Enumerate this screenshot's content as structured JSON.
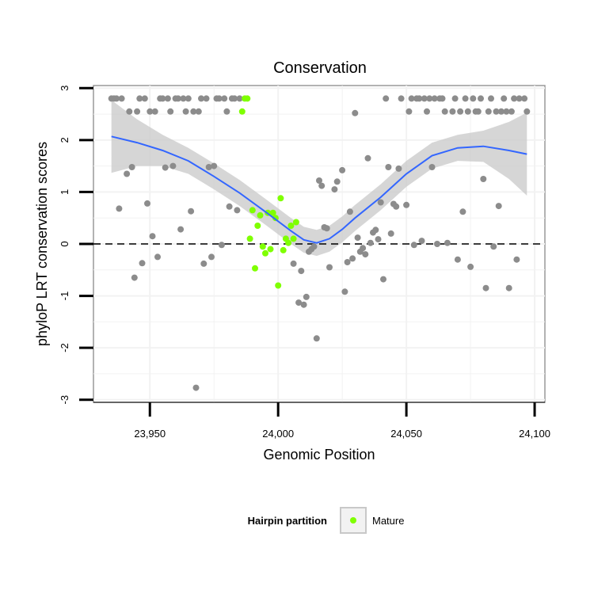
{
  "chart_data": {
    "type": "scatter",
    "title": "Conservation",
    "xlabel": "Genomic Position",
    "ylabel": "phyloP LRT conservation scores",
    "xlim": [
      23928,
      24104
    ],
    "ylim": [
      -3.05,
      3.05
    ],
    "x_ticks": [
      23950,
      24000,
      24050,
      24100
    ],
    "x_tick_labels": [
      "23,950",
      "24,000",
      "24,050",
      "24,100"
    ],
    "y_ticks": [
      -3,
      -2,
      -1,
      0,
      1,
      2,
      3
    ],
    "y_tick_labels": [
      "-3",
      "-2",
      "-1",
      "0",
      "1",
      "2",
      "3"
    ],
    "grid": true,
    "reference_line": {
      "y": 0,
      "style": "dashed"
    },
    "colors": {
      "other": "#8c8c8c",
      "mature": "#7fff00",
      "smooth": "#3366ff",
      "ribbon": "#c8c8c8"
    },
    "legend": {
      "title": "Hairpin partition",
      "placement": "bottom",
      "entries": [
        "Mature"
      ]
    },
    "series": [
      {
        "name": "Mature",
        "points": [
          [
            23986,
            2.55
          ],
          [
            23987,
            2.8
          ],
          [
            23988,
            2.8
          ],
          [
            23989,
            0.1
          ],
          [
            23990,
            0.65
          ],
          [
            23991,
            -0.47
          ],
          [
            23992,
            0.35
          ],
          [
            23993,
            0.55
          ],
          [
            23994,
            -0.05
          ],
          [
            23995,
            -0.18
          ],
          [
            23996,
            0.6
          ],
          [
            23997,
            -0.1
          ],
          [
            23998,
            0.6
          ],
          [
            23999,
            0.5
          ],
          [
            24000,
            -0.8
          ],
          [
            24001,
            0.88
          ],
          [
            24002,
            -0.12
          ],
          [
            24003,
            0.1
          ],
          [
            24004,
            0.02
          ],
          [
            24005,
            0.35
          ],
          [
            24006,
            0.1
          ],
          [
            24007,
            0.42
          ]
        ]
      },
      {
        "name": "",
        "points": [
          [
            23935,
            2.8
          ],
          [
            23936,
            2.8
          ],
          [
            23937,
            2.8
          ],
          [
            23938,
            0.68
          ],
          [
            23939,
            2.8
          ],
          [
            23941,
            1.35
          ],
          [
            23942,
            2.55
          ],
          [
            23943,
            1.48
          ],
          [
            23944,
            -0.65
          ],
          [
            23945,
            2.55
          ],
          [
            23946,
            2.8
          ],
          [
            23947,
            -0.37
          ],
          [
            23948,
            2.8
          ],
          [
            23949,
            0.78
          ],
          [
            23950,
            2.55
          ],
          [
            23951,
            0.15
          ],
          [
            23952,
            2.55
          ],
          [
            23953,
            -0.25
          ],
          [
            23954,
            2.8
          ],
          [
            23955,
            2.8
          ],
          [
            23956,
            1.47
          ],
          [
            23957,
            2.8
          ],
          [
            23958,
            2.55
          ],
          [
            23959,
            1.5
          ],
          [
            23960,
            2.8
          ],
          [
            23961,
            2.8
          ],
          [
            23962,
            0.28
          ],
          [
            23963,
            2.8
          ],
          [
            23964,
            2.55
          ],
          [
            23965,
            2.8
          ],
          [
            23966,
            0.63
          ],
          [
            23967,
            2.55
          ],
          [
            23968,
            -2.77
          ],
          [
            23969,
            2.55
          ],
          [
            23970,
            2.8
          ],
          [
            23971,
            -0.38
          ],
          [
            23972,
            2.8
          ],
          [
            23973,
            1.48
          ],
          [
            23974,
            -0.25
          ],
          [
            23975,
            1.5
          ],
          [
            23976,
            2.8
          ],
          [
            23977,
            2.8
          ],
          [
            23978,
            -0.02
          ],
          [
            23979,
            2.8
          ],
          [
            23980,
            2.55
          ],
          [
            23981,
            0.72
          ],
          [
            23982,
            2.8
          ],
          [
            23983,
            2.8
          ],
          [
            23984,
            0.65
          ],
          [
            23985,
            2.8
          ],
          [
            24006,
            -0.38
          ],
          [
            24008,
            -1.13
          ],
          [
            24009,
            -0.52
          ],
          [
            24010,
            -1.17
          ],
          [
            24011,
            -1.02
          ],
          [
            24012,
            -0.15
          ],
          [
            24013,
            -0.1
          ],
          [
            24014,
            -0.05
          ],
          [
            24015,
            -1.82
          ],
          [
            24016,
            1.22
          ],
          [
            24017,
            1.12
          ],
          [
            24018,
            0.32
          ],
          [
            24019,
            0.3
          ],
          [
            24020,
            -0.45
          ],
          [
            24022,
            1.05
          ],
          [
            24023,
            1.2
          ],
          [
            24025,
            1.42
          ],
          [
            24026,
            -0.92
          ],
          [
            24027,
            -0.35
          ],
          [
            24028,
            0.62
          ],
          [
            24029,
            -0.28
          ],
          [
            24030,
            2.52
          ],
          [
            24031,
            0.12
          ],
          [
            24032,
            -0.15
          ],
          [
            24033,
            -0.08
          ],
          [
            24034,
            -0.2
          ],
          [
            24035,
            1.65
          ],
          [
            24036,
            0.02
          ],
          [
            24037,
            0.22
          ],
          [
            24038,
            0.27
          ],
          [
            24039,
            0.09
          ],
          [
            24040,
            0.8
          ],
          [
            24041,
            -0.68
          ],
          [
            24042,
            2.8
          ],
          [
            24043,
            1.48
          ],
          [
            24044,
            0.2
          ],
          [
            24045,
            0.77
          ],
          [
            24046,
            0.72
          ],
          [
            24047,
            1.45
          ],
          [
            24048,
            2.8
          ],
          [
            24050,
            0.75
          ],
          [
            24051,
            2.55
          ],
          [
            24052,
            2.8
          ],
          [
            24053,
            -0.02
          ],
          [
            24054,
            2.8
          ],
          [
            24055,
            2.8
          ],
          [
            24056,
            0.06
          ],
          [
            24057,
            2.8
          ],
          [
            24058,
            2.55
          ],
          [
            24059,
            2.8
          ],
          [
            24060,
            1.48
          ],
          [
            24061,
            2.8
          ],
          [
            24062,
            0.0
          ],
          [
            24063,
            2.8
          ],
          [
            24064,
            2.8
          ],
          [
            24065,
            2.55
          ],
          [
            24066,
            0.02
          ],
          [
            24068,
            2.55
          ],
          [
            24069,
            2.8
          ],
          [
            24070,
            -0.3
          ],
          [
            24071,
            2.55
          ],
          [
            24072,
            0.62
          ],
          [
            24073,
            2.8
          ],
          [
            24074,
            2.55
          ],
          [
            24075,
            -0.44
          ],
          [
            24076,
            2.8
          ],
          [
            24077,
            2.55
          ],
          [
            24078,
            2.55
          ],
          [
            24079,
            2.8
          ],
          [
            24080,
            1.25
          ],
          [
            24081,
            -0.85
          ],
          [
            24082,
            2.55
          ],
          [
            24083,
            2.8
          ],
          [
            24084,
            -0.05
          ],
          [
            24085,
            2.55
          ],
          [
            24086,
            0.73
          ],
          [
            24087,
            2.55
          ],
          [
            24088,
            2.8
          ],
          [
            24089,
            2.55
          ],
          [
            24090,
            -0.85
          ],
          [
            24091,
            2.55
          ],
          [
            24092,
            2.8
          ],
          [
            24093,
            -0.3
          ],
          [
            24094,
            2.8
          ],
          [
            24096,
            2.8
          ],
          [
            24097,
            2.55
          ]
        ]
      }
    ],
    "smooth_curve": {
      "x": [
        23935,
        23945,
        23955,
        23965,
        23975,
        23985,
        23995,
        24005,
        24010,
        24015,
        24020,
        24025,
        24030,
        24040,
        24050,
        24060,
        24070,
        24080,
        24090,
        24097
      ],
      "y": [
        2.07,
        1.95,
        1.8,
        1.6,
        1.3,
        0.98,
        0.62,
        0.25,
        0.08,
        0.02,
        0.1,
        0.28,
        0.5,
        0.9,
        1.35,
        1.7,
        1.85,
        1.88,
        1.8,
        1.73
      ],
      "ribbon_half_width": [
        0.7,
        0.45,
        0.3,
        0.25,
        0.25,
        0.25,
        0.25,
        0.25,
        0.25,
        0.25,
        0.25,
        0.25,
        0.25,
        0.25,
        0.25,
        0.25,
        0.25,
        0.3,
        0.55,
        0.8
      ]
    }
  }
}
